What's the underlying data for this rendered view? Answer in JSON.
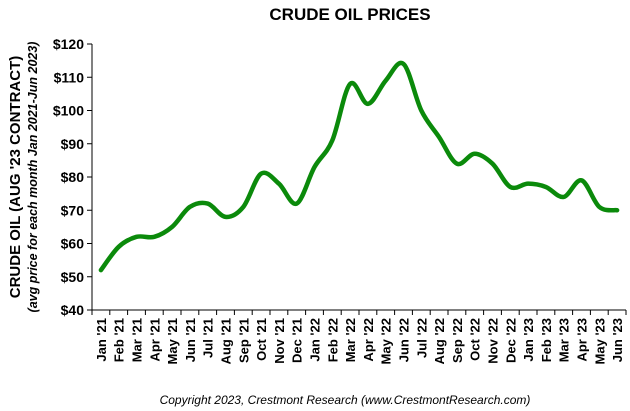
{
  "chart_data": {
    "type": "line",
    "title": "CRUDE OIL PRICES",
    "y_label": "CRUDE OIL (AUG '23 CONTRACT)",
    "y_sublabel": "(avg price for each month Jan 2021-Jun 2023)",
    "footer": "Copyright 2023, Crestmont Research (www.CrestmontResearch.com)",
    "categories": [
      "Jan '21",
      "Feb '21",
      "Mar '21",
      "Apr '21",
      "May '21",
      "Jun '21",
      "Jul '21",
      "Aug '21",
      "Sep '21",
      "Oct '21",
      "Nov '21",
      "Dec '21",
      "Jan '22",
      "Feb '22",
      "Mar '22",
      "Apr '22",
      "May '22",
      "Jun '22",
      "Jul '22",
      "Aug '22",
      "Sep '22",
      "Oct '22",
      "Nov '22",
      "Dec '22",
      "Jan '23",
      "Feb '23",
      "Mar '23",
      "Apr '23",
      "May '23",
      "Jun '23"
    ],
    "series": [
      {
        "name": "Crude Oil",
        "color": "#0b8a0b",
        "values": [
          52,
          59,
          62,
          62,
          65,
          71,
          72,
          68,
          71,
          81,
          78,
          72,
          83,
          91,
          108,
          102,
          109,
          114,
          100,
          92,
          84,
          87,
          84,
          77,
          78,
          77,
          74,
          79,
          71,
          70
        ]
      }
    ],
    "ylim": [
      40,
      120
    ],
    "yticks": [
      {
        "value": 40,
        "label": "$40"
      },
      {
        "value": 50,
        "label": "$50"
      },
      {
        "value": 60,
        "label": "$60"
      },
      {
        "value": 70,
        "label": "$70"
      },
      {
        "value": 80,
        "label": "$80"
      },
      {
        "value": 90,
        "label": "$90"
      },
      {
        "value": 100,
        "label": "$100"
      },
      {
        "value": 110,
        "label": "$110"
      },
      {
        "value": 120,
        "label": "$120"
      }
    ]
  }
}
